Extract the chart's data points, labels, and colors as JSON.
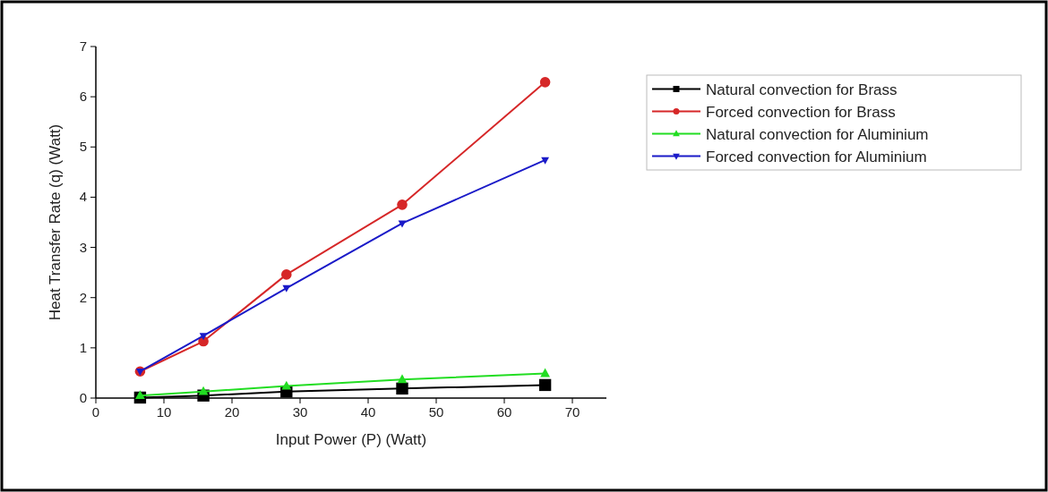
{
  "chart_data": {
    "type": "line",
    "xlabel": "Input Power (P) (Watt)",
    "ylabel": "Heat Transfer Rate (q) (Watt)",
    "x": [
      6.5,
      15.8,
      28,
      45,
      66
    ],
    "series": [
      {
        "name": "Natural convection for Brass",
        "color": "#000000",
        "marker": "square",
        "values": [
          0.01,
          0.05,
          0.13,
          0.19,
          0.26
        ]
      },
      {
        "name": "Forced convection for Brass",
        "color": "#d62728",
        "marker": "circle",
        "values": [
          0.53,
          1.13,
          2.46,
          3.85,
          6.29
        ]
      },
      {
        "name": "Natural convection for Aluminium",
        "color": "#22dd22",
        "marker": "triangle",
        "values": [
          0.05,
          0.13,
          0.24,
          0.37,
          0.49
        ]
      },
      {
        "name": "Forced convection for Aluminium",
        "color": "#1a1ac8",
        "marker": "triangle-down",
        "values": [
          0.53,
          1.24,
          2.19,
          3.48,
          4.74
        ]
      }
    ],
    "xlim": [
      0,
      75
    ],
    "xticks": [
      0,
      10,
      20,
      30,
      40,
      50,
      60,
      70
    ],
    "ylim": [
      0,
      7
    ],
    "yticks": [
      0,
      1,
      2,
      3,
      4,
      5,
      6,
      7
    ],
    "grid": false,
    "legend": "right",
    "line_style": "solid"
  }
}
